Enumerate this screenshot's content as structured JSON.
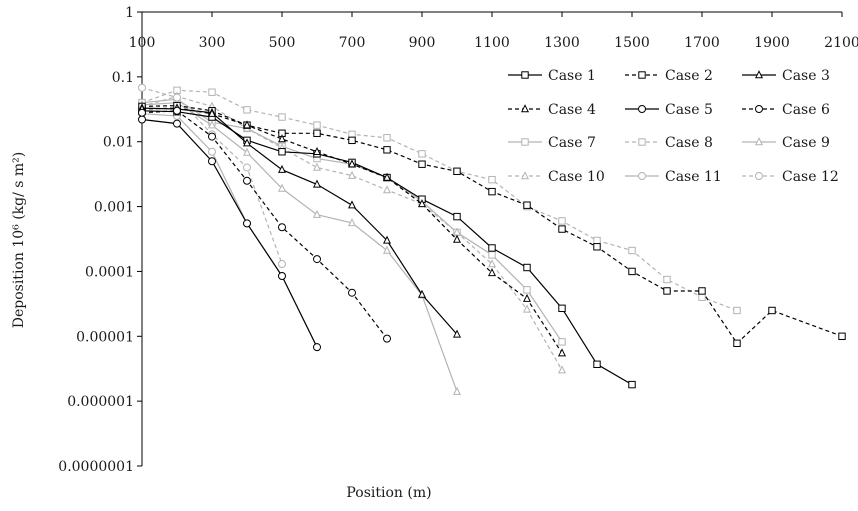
{
  "chart_data": {
    "type": "line",
    "title": "",
    "xlabel": "Position (m)",
    "ylabel": "Deposition 10⁶ (kg/ s m²)",
    "x_axis": {
      "min": 100,
      "max": 2100,
      "ticks": [
        "100",
        "300",
        "500",
        "700",
        "900",
        "1100",
        "1300",
        "1500",
        "1700",
        "1900",
        "2100"
      ],
      "position": "top"
    },
    "y_axis": {
      "scale": "log",
      "min": 1e-07,
      "max": 1,
      "ticks": [
        "1",
        "0.1",
        "0.01",
        "0.001",
        "0.0001",
        "0.00001",
        "0.000001",
        "0.0000001"
      ]
    },
    "grid": false,
    "legend_position": "top-right",
    "series": [
      {
        "name": "Case 1",
        "color": "#000000",
        "dash": "solid",
        "marker": "square",
        "x": [
          100,
          200,
          300,
          400,
          500,
          600,
          700,
          800,
          900,
          1000,
          1100,
          1200,
          1300,
          1400,
          1500
        ],
        "y": [
          0.03,
          0.029,
          0.024,
          0.0105,
          0.007,
          0.0065,
          0.0048,
          0.0028,
          0.0013,
          0.0007,
          0.00023,
          0.000115,
          2.7e-05,
          3.7e-06,
          1.8e-06
        ]
      },
      {
        "name": "Case 2",
        "color": "#000000",
        "dash": "dashed",
        "marker": "square",
        "x": [
          100,
          200,
          300,
          400,
          500,
          600,
          700,
          800,
          900,
          1000,
          1100,
          1200,
          1300,
          1400,
          1500,
          1600,
          1700,
          1800,
          1900,
          2100
        ],
        "y": [
          0.035,
          0.036,
          0.03,
          0.018,
          0.0135,
          0.0135,
          0.0105,
          0.0075,
          0.0045,
          0.0035,
          0.0017,
          0.00105,
          0.00045,
          0.00024,
          0.0001,
          5e-05,
          5e-05,
          7.8e-06,
          2.5e-05,
          1e-05
        ]
      },
      {
        "name": "Case 3",
        "color": "#000000",
        "dash": "solid",
        "marker": "triangle",
        "x": [
          100,
          200,
          300,
          400,
          500,
          600,
          700,
          800,
          900,
          1000
        ],
        "y": [
          0.033,
          0.032,
          0.028,
          0.0095,
          0.0037,
          0.0022,
          0.00105,
          0.0003,
          4.4e-05,
          1.07e-05
        ]
      },
      {
        "name": "Case 4",
        "color": "#000000",
        "dash": "dashed",
        "marker": "triangle",
        "x": [
          100,
          200,
          300,
          400,
          500,
          600,
          700,
          800,
          900,
          1000,
          1100,
          1200,
          1300
        ],
        "y": [
          0.032,
          0.033,
          0.027,
          0.018,
          0.011,
          0.007,
          0.0045,
          0.0028,
          0.0011,
          0.00031,
          9.5e-05,
          3.8e-05,
          5.5e-06
        ]
      },
      {
        "name": "Case 5",
        "color": "#000000",
        "dash": "solid",
        "marker": "circle",
        "x": [
          100,
          200,
          300,
          400,
          500,
          600
        ],
        "y": [
          0.022,
          0.019,
          0.005,
          0.00055,
          8.5e-05,
          6.8e-06
        ]
      },
      {
        "name": "Case 6",
        "color": "#000000",
        "dash": "dashed",
        "marker": "circle",
        "x": [
          100,
          200,
          300,
          400,
          500,
          600,
          700,
          800
        ],
        "y": [
          0.028,
          0.03,
          0.012,
          0.0025,
          0.00048,
          0.000155,
          4.7e-05,
          9.2e-06
        ]
      },
      {
        "name": "Case 7",
        "color": "#b3b3b3",
        "dash": "solid",
        "marker": "square",
        "x": [
          100,
          200,
          300,
          400,
          500,
          600,
          700,
          800,
          900,
          1000,
          1100,
          1200,
          1300
        ],
        "y": [
          0.04,
          0.045,
          0.02,
          0.016,
          0.0085,
          0.0055,
          0.0045,
          0.0028,
          0.0012,
          0.0004,
          0.00018,
          5.2e-05,
          8.2e-06
        ]
      },
      {
        "name": "Case 8",
        "color": "#b3b3b3",
        "dash": "dashed",
        "marker": "square",
        "x": [
          100,
          200,
          300,
          400,
          500,
          600,
          700,
          800,
          900,
          1000,
          1100,
          1200,
          1300,
          1400,
          1500,
          1600,
          1700,
          1800
        ],
        "y": [
          0.04,
          0.062,
          0.058,
          0.031,
          0.024,
          0.018,
          0.013,
          0.0115,
          0.0065,
          0.0035,
          0.0026,
          0.001,
          0.0006,
          0.0003,
          0.00021,
          7.5e-05,
          4e-05,
          2.5e-05
        ]
      },
      {
        "name": "Case 9",
        "color": "#b3b3b3",
        "dash": "solid",
        "marker": "triangle",
        "x": [
          100,
          200,
          300,
          400,
          500,
          600,
          700,
          800,
          900,
          1000
        ],
        "y": [
          0.037,
          0.04,
          0.018,
          0.0068,
          0.0019,
          0.00075,
          0.00056,
          0.00021,
          4.3e-05,
          1.4e-06
        ]
      },
      {
        "name": "Case 10",
        "color": "#b3b3b3",
        "dash": "dashed",
        "marker": "triangle",
        "x": [
          100,
          200,
          300,
          400,
          500,
          600,
          700,
          800,
          900,
          1000,
          1100,
          1200,
          1300
        ],
        "y": [
          0.035,
          0.05,
          0.035,
          0.016,
          0.008,
          0.004,
          0.003,
          0.0018,
          0.0011,
          0.0004,
          0.00013,
          2.6e-05,
          3e-06
        ]
      },
      {
        "name": "Case 11",
        "color": "#b3b3b3",
        "dash": "solid",
        "marker": "circle",
        "x": [
          100,
          200,
          300,
          400,
          500,
          600
        ],
        "y": [
          0.027,
          0.025,
          0.007,
          0.00055,
          8.5e-05,
          6.8e-06
        ]
      },
      {
        "name": "Case 12",
        "color": "#b3b3b3",
        "dash": "dashed",
        "marker": "circle",
        "x": [
          100,
          200,
          300,
          400,
          500
        ],
        "y": [
          0.068,
          0.048,
          0.013,
          0.004,
          0.00013
        ]
      }
    ]
  }
}
